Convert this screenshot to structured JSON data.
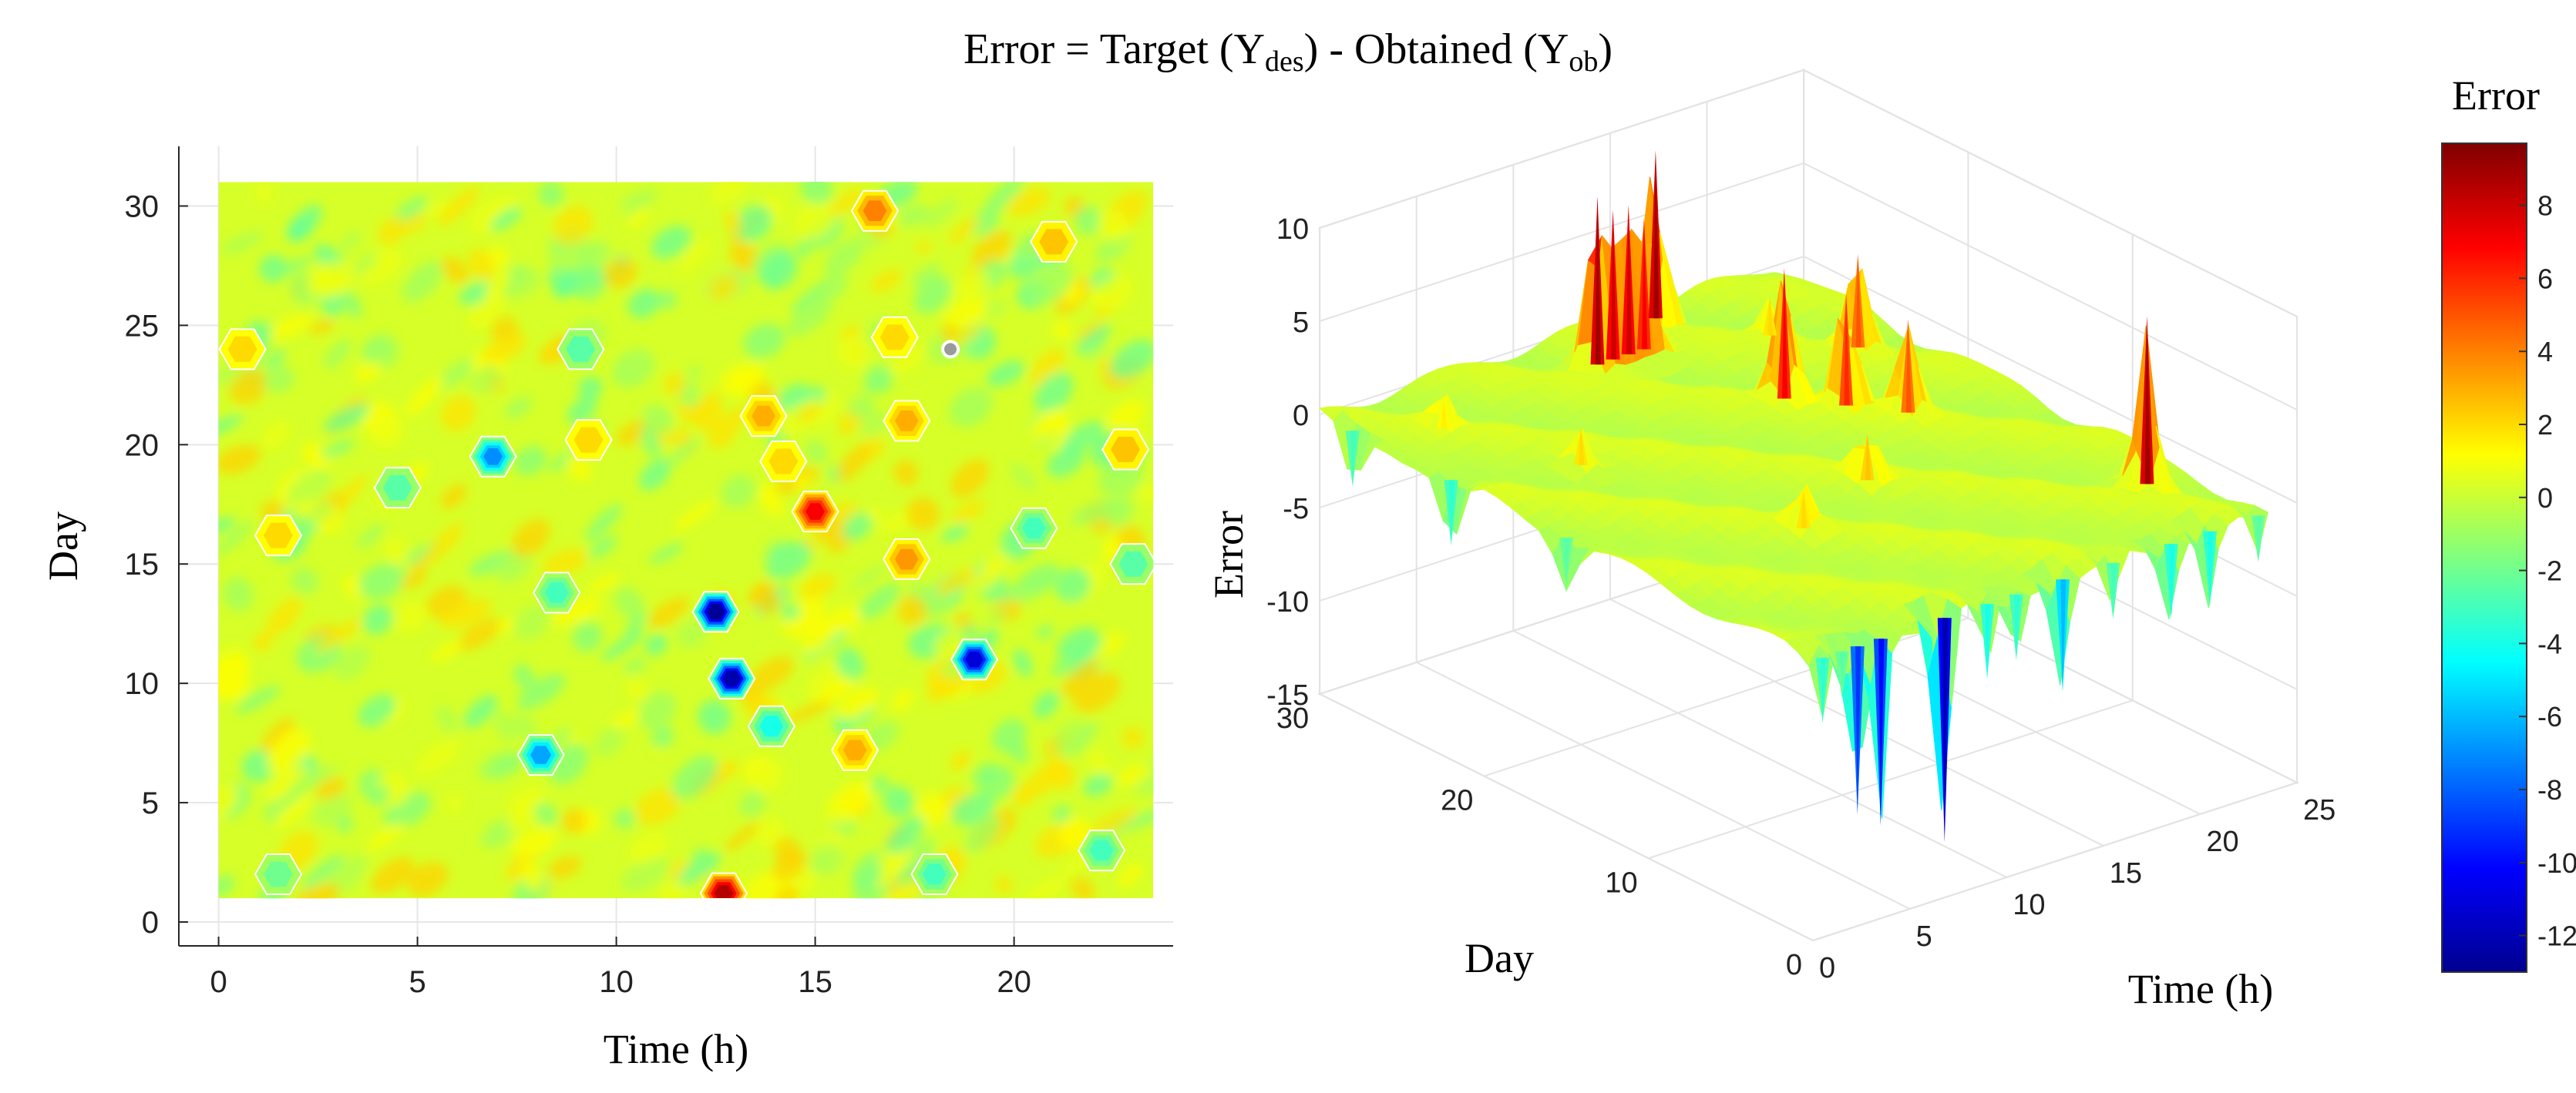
{
  "figure": {
    "title_prefix": "Error = Target (Y",
    "title_sub1": "des",
    "title_mid": ") - Obtained (Y",
    "title_sub2": "ob",
    "title_suffix": ")"
  },
  "chart_data": [
    {
      "type": "heatmap",
      "title": "",
      "xlabel": "Time (h)",
      "ylabel": "Day",
      "xlim": [
        -1,
        24
      ],
      "ylim": [
        -1,
        32.5
      ],
      "xticks": [
        0,
        5,
        10,
        15,
        20
      ],
      "yticks": [
        0,
        5,
        10,
        15,
        20,
        25,
        30
      ],
      "data_extent": {
        "x": [
          0,
          23.5
        ],
        "y": [
          1,
          31
        ]
      },
      "background_value": 0.3,
      "features": [
        {
          "x": 12.5,
          "y": 13,
          "value": -12.5
        },
        {
          "x": 12.9,
          "y": 10.2,
          "value": -12
        },
        {
          "x": 19.0,
          "y": 11,
          "value": -11
        },
        {
          "x": 6.9,
          "y": 19.5,
          "value": -7
        },
        {
          "x": 8.1,
          "y": 7,
          "value": -6.5
        },
        {
          "x": 13.9,
          "y": 8.2,
          "value": -4
        },
        {
          "x": 15.0,
          "y": 17.2,
          "value": 7
        },
        {
          "x": 16.5,
          "y": 29.8,
          "value": 4
        },
        {
          "x": 17.3,
          "y": 15.2,
          "value": 3.5
        },
        {
          "x": 17.3,
          "y": 21,
          "value": 3
        },
        {
          "x": 13.7,
          "y": 21.2,
          "value": 3
        },
        {
          "x": 22.8,
          "y": 19.8,
          "value": 2.5
        },
        {
          "x": 12.7,
          "y": 1.2,
          "value": 8.5
        },
        {
          "x": 16.0,
          "y": 7.2,
          "value": 3
        },
        {
          "x": 9.3,
          "y": 20.2,
          "value": 2
        },
        {
          "x": 14.2,
          "y": 19.3,
          "value": 2
        },
        {
          "x": 8.5,
          "y": 13.8,
          "value": -3
        },
        {
          "x": 23.0,
          "y": 15,
          "value": -2.5
        },
        {
          "x": 17.0,
          "y": 24.5,
          "value": 2
        },
        {
          "x": 1.5,
          "y": 16.2,
          "value": 2
        },
        {
          "x": 4.5,
          "y": 18.2,
          "value": -2.5
        },
        {
          "x": 9.1,
          "y": 24,
          "value": -2.5
        },
        {
          "x": 0.6,
          "y": 24,
          "value": 2
        },
        {
          "x": 21.0,
          "y": 28.5,
          "value": 2.5
        },
        {
          "x": 20.5,
          "y": 16.5,
          "value": -3
        },
        {
          "x": 22.2,
          "y": 3,
          "value": -3
        },
        {
          "x": 18.0,
          "y": 2,
          "value": -3
        },
        {
          "x": 1.5,
          "y": 2,
          "value": -2
        }
      ],
      "marker": {
        "x": 18.4,
        "y": 24
      }
    },
    {
      "type": "surface",
      "xlabel": "Time (h)",
      "ylabel": "Day",
      "zlabel": "Error",
      "xlim": [
        0,
        25
      ],
      "ylim": [
        0,
        30
      ],
      "zlim": [
        -15,
        10
      ],
      "xticks": [
        0,
        5,
        10,
        15,
        20,
        25
      ],
      "yticks": [
        0,
        10,
        20,
        30
      ],
      "zticks": [
        -15,
        -10,
        -5,
        0,
        5,
        10
      ],
      "peaks": [
        {
          "x": 11.8,
          "y": 27,
          "z": 9
        },
        {
          "x": 12.6,
          "y": 27,
          "z": 8
        },
        {
          "x": 13.4,
          "y": 27,
          "z": 8
        },
        {
          "x": 14.2,
          "y": 27,
          "z": 7
        },
        {
          "x": 16.5,
          "y": 29,
          "z": 9
        },
        {
          "x": 15.5,
          "y": 20,
          "z": 7
        },
        {
          "x": 17.0,
          "y": 18,
          "z": 6
        },
        {
          "x": 18.5,
          "y": 16,
          "z": 5
        },
        {
          "x": 21.0,
          "y": 22,
          "z": 5
        },
        {
          "x": 21.5,
          "y": 5,
          "z": 9
        },
        {
          "x": 5.0,
          "y": 20,
          "z": 2
        },
        {
          "x": 8.0,
          "y": 10,
          "z": 2
        },
        {
          "x": 13.0,
          "y": 12,
          "z": 2.5
        },
        {
          "x": 19.0,
          "y": 25,
          "z": 2
        },
        {
          "x": 3.0,
          "y": 26,
          "z": 1.5
        }
      ],
      "valleys": [
        {
          "x": 2.3,
          "y": 0,
          "z": -9
        },
        {
          "x": 3.5,
          "y": 0,
          "z": -10
        },
        {
          "x": 6.8,
          "y": 0,
          "z": -12
        },
        {
          "x": 12.9,
          "y": 0,
          "z": -6
        },
        {
          "x": 0.5,
          "y": 0,
          "z": -3.5
        },
        {
          "x": 1.5,
          "y": 0,
          "z": -2.5
        },
        {
          "x": 9.0,
          "y": 0,
          "z": -4
        },
        {
          "x": 10.5,
          "y": 0,
          "z": -3.5
        },
        {
          "x": 15.5,
          "y": 0,
          "z": -3
        },
        {
          "x": 18.5,
          "y": 0,
          "z": -4
        },
        {
          "x": 20.5,
          "y": 0,
          "z": -4
        },
        {
          "x": 23.0,
          "y": 0,
          "z": -2.5
        },
        {
          "x": 0,
          "y": 28,
          "z": -3
        },
        {
          "x": 0,
          "y": 22,
          "z": -3.5
        },
        {
          "x": 0,
          "y": 15,
          "z": -2.5
        }
      ]
    }
  ],
  "colorbar": {
    "title": "Error",
    "min": -13,
    "max": 9.7,
    "ticks": [
      -12,
      -10,
      -8,
      -6,
      -4,
      -2,
      0,
      2,
      4,
      6,
      8
    ],
    "colormap": "jet"
  }
}
